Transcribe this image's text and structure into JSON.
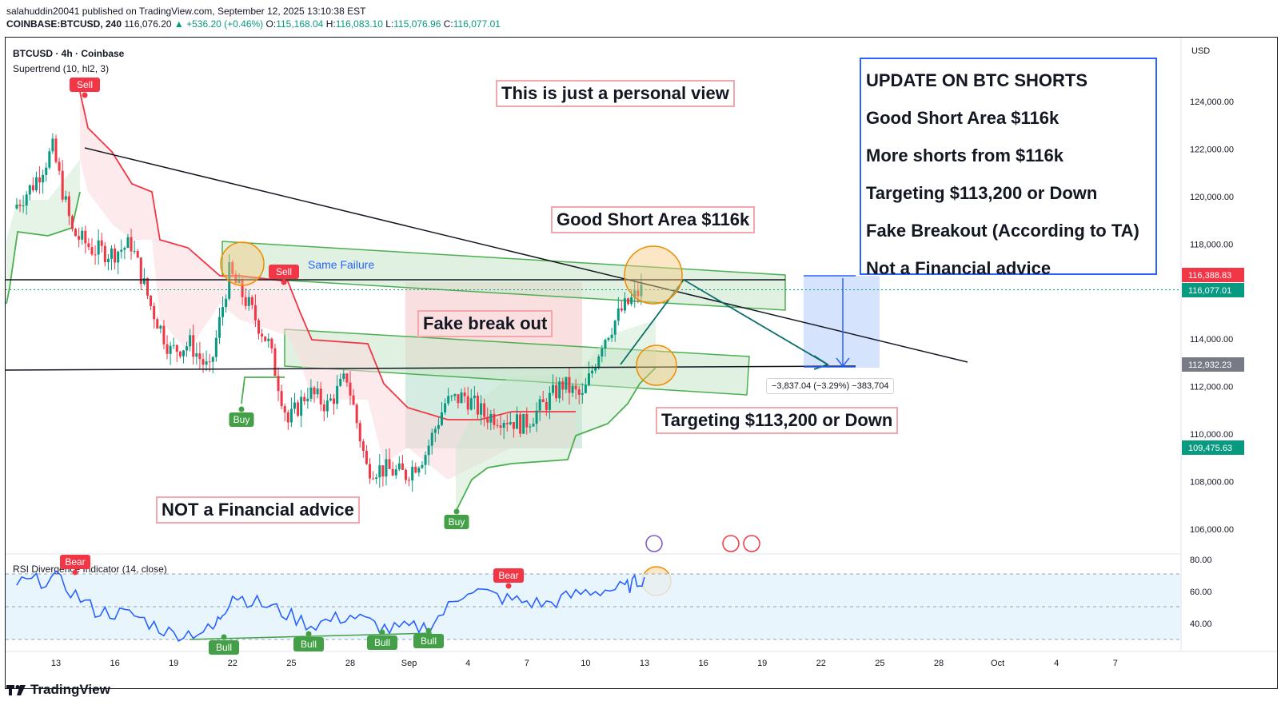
{
  "header": {
    "line1": "salahuddin20041 published on TradingView.com, September 12, 2025 13:10:38 EST",
    "symbol": "COINBASE:BTCUSD, 240",
    "last": "116,076.20",
    "change": "▲ +536.20 (+0.46%)",
    "open_label": "O:",
    "open": "115,168.04",
    "high_label": "H:",
    "high": "116,083.10",
    "low_label": "L:",
    "low": "115,076.96",
    "close_label": "C:",
    "close": "116,077.01"
  },
  "legend": {
    "ticker": "BTCUSD · 4h · Coinbase",
    "indicator": "Supertrend (10, hl2, 3)",
    "rsi": "RSI Divergence Indicator (14, close)"
  },
  "currency": "USD",
  "notes": {
    "personal_view": "This is just a personal view",
    "good_short": "Good Short Area $116k",
    "fake_break": "Fake break out",
    "targeting": "Targeting $113,200 or Down",
    "not_advice": "NOT a Financial advice",
    "same_failure": "Same Failure"
  },
  "update_box": [
    "UPDATE ON BTC SHORTS",
    "Good Short Area $116k",
    "More shorts from $116k",
    "Targeting $113,200 or Down",
    "Fake Breakout (According to TA)",
    "Not a Financial advice"
  ],
  "measure": "−3,837.04 (−3.29%) −383,704",
  "signals": {
    "sell": "Sell",
    "buy": "Buy",
    "bear": "Bear",
    "bull": "Bull"
  },
  "footer": "TradingView",
  "colors": {
    "up": "#089981",
    "down": "#f23645",
    "supertrend_up": "#4caf50",
    "supertrend_down": "#f23645",
    "rsi": "#2962ff",
    "channel": "#4caf50"
  },
  "chart_data": {
    "type": "candlestick",
    "title": "BTCUSD · 4h · Coinbase",
    "price_axis": {
      "ticks": [
        106000,
        108000,
        110000,
        112000,
        114000,
        116000,
        118000,
        120000,
        122000,
        124000
      ],
      "tick_labels": [
        "106,000.00",
        "108,000.00",
        "110,000.00",
        "112,000.00",
        "114,000.00",
        "116,000.00",
        "118,000.00",
        "120,000.00",
        "122,000.00",
        "124,000.00"
      ],
      "range": [
        105000,
        126000
      ]
    },
    "time_axis": {
      "labels": [
        "13",
        "16",
        "19",
        "22",
        "25",
        "28",
        "Sep",
        "4",
        "7",
        "10",
        "13",
        "16",
        "19",
        "22",
        "25",
        "28",
        "Oct",
        "4",
        "7"
      ]
    },
    "price_tags": [
      {
        "label": "116,388.83",
        "value": 116388.83,
        "color": "#f23645"
      },
      {
        "label": "116,077.01",
        "value": 116077.01,
        "color": "#089981"
      },
      {
        "label": "112,932.23",
        "value": 112932.23,
        "color": "#787b86"
      },
      {
        "label": "109,475.63",
        "value": 109475.63,
        "color": "#089981"
      }
    ],
    "close_path": [
      {
        "date": "Aug 11",
        "close": 119500
      },
      {
        "date": "Aug 12",
        "close": 120500
      },
      {
        "date": "Aug 13",
        "close": 122000
      },
      {
        "date": "Aug 14",
        "close": 118500
      },
      {
        "date": "Aug 15",
        "close": 117800
      },
      {
        "date": "Aug 16",
        "close": 117600
      },
      {
        "date": "Aug 17",
        "close": 118000
      },
      {
        "date": "Aug 18",
        "close": 115400
      },
      {
        "date": "Aug 19",
        "close": 113500
      },
      {
        "date": "Aug 20",
        "close": 113800
      },
      {
        "date": "Aug 21",
        "close": 112600
      },
      {
        "date": "Aug 22",
        "close": 116800
      },
      {
        "date": "Aug 23",
        "close": 115400
      },
      {
        "date": "Aug 24",
        "close": 113800
      },
      {
        "date": "Aug 25",
        "close": 110500
      },
      {
        "date": "Aug 26",
        "close": 111800
      },
      {
        "date": "Aug 27",
        "close": 111200
      },
      {
        "date": "Aug 28",
        "close": 112400
      },
      {
        "date": "Aug 29",
        "close": 108600
      },
      {
        "date": "Aug 30",
        "close": 108500
      },
      {
        "date": "Aug 31",
        "close": 108300
      },
      {
        "date": "Sep 1",
        "close": 109200
      },
      {
        "date": "Sep 2",
        "close": 111300
      },
      {
        "date": "Sep 3",
        "close": 111600
      },
      {
        "date": "Sep 4",
        "close": 110800
      },
      {
        "date": "Sep 5",
        "close": 110700
      },
      {
        "date": "Sep 6",
        "close": 110400
      },
      {
        "date": "Sep 7",
        "close": 111200
      },
      {
        "date": "Sep 8",
        "close": 112100
      },
      {
        "date": "Sep 9",
        "close": 111500
      },
      {
        "date": "Sep 10",
        "close": 113900
      },
      {
        "date": "Sep 11",
        "close": 115200
      },
      {
        "date": "Sep 12",
        "close": 116077
      }
    ],
    "rsi_axis": {
      "ticks": [
        40,
        60,
        80
      ],
      "tick_labels": [
        "40.00",
        "60.00",
        "80.00"
      ]
    },
    "rsi": [
      {
        "date": "Aug 11",
        "value": 65
      },
      {
        "date": "Aug 13",
        "value": 68
      },
      {
        "date": "Aug 15",
        "value": 48
      },
      {
        "date": "Aug 17",
        "value": 45
      },
      {
        "date": "Aug 19",
        "value": 33
      },
      {
        "date": "Aug 21",
        "value": 36
      },
      {
        "date": "Aug 22",
        "value": 58
      },
      {
        "date": "Aug 24",
        "value": 50
      },
      {
        "date": "Aug 26",
        "value": 39
      },
      {
        "date": "Aug 28",
        "value": 45
      },
      {
        "date": "Aug 30",
        "value": 36
      },
      {
        "date": "Sep 1",
        "value": 38
      },
      {
        "date": "Sep 3",
        "value": 62
      },
      {
        "date": "Sep 5",
        "value": 55
      },
      {
        "date": "Sep 7",
        "value": 52
      },
      {
        "date": "Sep 9",
        "value": 60
      },
      {
        "date": "Sep 11",
        "value": 62
      },
      {
        "date": "Sep 12",
        "value": 69
      }
    ]
  }
}
